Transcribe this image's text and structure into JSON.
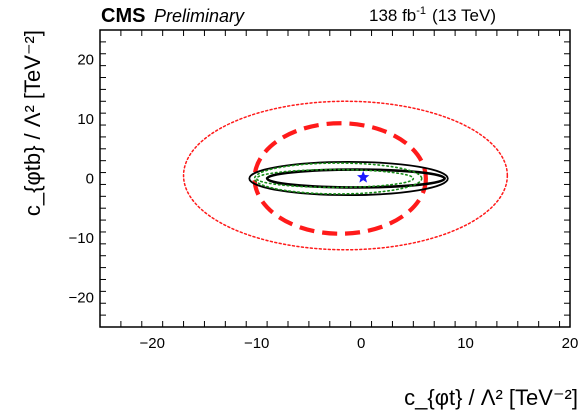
{
  "chart_data": {
    "type": "contour",
    "header": {
      "experiment": "CMS",
      "status": "Preliminary",
      "lumi_value": "138 fb",
      "lumi_exponent": "-1",
      "energy": "(13 TeV)"
    },
    "x_axis": {
      "label": "c_{φt} / Λ² [TeV⁻²]",
      "range": [
        -25,
        20
      ],
      "major_ticks": [
        -20,
        -10,
        0,
        10,
        20
      ],
      "tick_labels": [
        "−20",
        "−10",
        "0",
        "10",
        "20"
      ],
      "minor_step": 2
    },
    "y_axis": {
      "label": "c_{φtb} / Λ² [TeV⁻²]",
      "range": [
        -25,
        25
      ],
      "major_ticks": [
        -20,
        -10,
        0,
        10,
        20
      ],
      "tick_labels": [
        "−20",
        "−10",
        "0",
        "10",
        "20"
      ],
      "minor_step": 2
    },
    "best_fit": {
      "x": 0.2,
      "y": 0.2,
      "marker": "star",
      "color": "#1a1aff"
    },
    "contours": [
      {
        "id": "red-dotted-outer",
        "color": "#ff1a1a",
        "style": "dotted",
        "cx": -1.5,
        "cy": 0.5,
        "rx": 15.5,
        "ry": 12.5
      },
      {
        "id": "red-dashed",
        "color": "#ff1a1a",
        "style": "dashed",
        "cx": -2.0,
        "cy": 0.0,
        "rx": 8.2,
        "ry": 9.3
      },
      {
        "id": "black-solid-outer",
        "color": "#000000",
        "style": "solid",
        "cx": -1.2,
        "cy": 0.0,
        "rx": 9.5,
        "ry": 2.8
      },
      {
        "id": "black-solid-inner",
        "color": "#000000",
        "style": "solid",
        "cx": -0.5,
        "cy": 0.0,
        "rx": 8.5,
        "ry": 1.5
      },
      {
        "id": "green-dotted-outer",
        "color": "#1a8c1a",
        "style": "dotted",
        "cx": -2.2,
        "cy": 0.0,
        "rx": 8.0,
        "ry": 2.6
      },
      {
        "id": "green-dotted-inner",
        "color": "#1a8c1a",
        "style": "dotted",
        "cx": -2.5,
        "cy": 0.0,
        "rx": 7.5,
        "ry": 1.5
      }
    ],
    "grid": false
  }
}
